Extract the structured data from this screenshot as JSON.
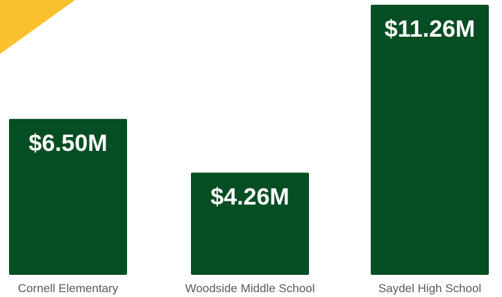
{
  "colors": {
    "bar": "#054d22",
    "bar_label": "#ffffff",
    "category_label": "#5a5a5a",
    "accent": "#fbc02d"
  },
  "chart_data": {
    "type": "bar",
    "categories": [
      "Cornell Elementary",
      "Woodside Middle School",
      "Saydel High School"
    ],
    "values": [
      6.5,
      4.26,
      11.26
    ],
    "data_labels": [
      "$6.50M",
      "$4.26M",
      "$11.26M"
    ],
    "unit": "$M",
    "ylim": [
      0,
      11.4
    ],
    "grid": false,
    "legend": "none"
  }
}
